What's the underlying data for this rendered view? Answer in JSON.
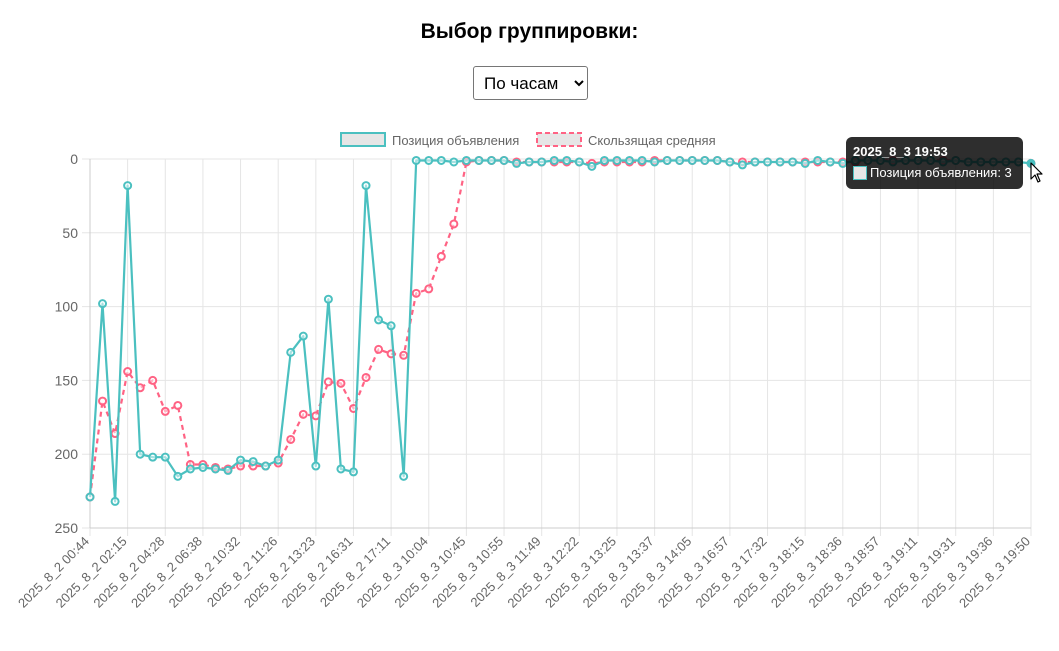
{
  "page": {
    "title": "Выбор группировки:",
    "grouping_select": {
      "selected": "По часам",
      "options": [
        "По часам"
      ]
    }
  },
  "colors": {
    "position_line": "#4bc0c0",
    "moving_avg_line": "#ff6384",
    "grid": "#e5e5e5",
    "legend_fill": "#e6e6e6"
  },
  "tooltip": {
    "title": "2025_8_3 19:53",
    "label": "Позиция объявления: 3"
  },
  "chart_data": {
    "type": "line",
    "title": "",
    "xlabel": "",
    "ylabel": "",
    "y_reversed": true,
    "ylim": [
      0,
      250
    ],
    "yticks": [
      0,
      50,
      100,
      150,
      200,
      250
    ],
    "legend_position": "top-center",
    "grid": true,
    "x_tick_labels": [
      "2025_8_2 00:44",
      "2025_8_2 02:15",
      "2025_8_2 04:28",
      "2025_8_2 06:38",
      "2025_8_2 10:32",
      "2025_8_2 11:26",
      "2025_8_2 13:23",
      "2025_8_2 16:31",
      "2025_8_2 17:11",
      "2025_8_3 10:04",
      "2025_8_3 10:45",
      "2025_8_3 10:55",
      "2025_8_3 11:49",
      "2025_8_3 12:22",
      "2025_8_3 13:25",
      "2025_8_3 13:37",
      "2025_8_3 14:05",
      "2025_8_3 16:57",
      "2025_8_3 17:32",
      "2025_8_3 18:15",
      "2025_8_3 18:36",
      "2025_8_3 18:57",
      "2025_8_3 19:11",
      "2025_8_3 19:31",
      "2025_8_3 19:36",
      "2025_8_3 19:50"
    ],
    "series": [
      {
        "name": "Позиция объявления",
        "style": "solid",
        "values": [
          229,
          98,
          232,
          18,
          200,
          202,
          202,
          215,
          210,
          209,
          210,
          211,
          204,
          205,
          208,
          204,
          131,
          120,
          208,
          95,
          210,
          212,
          18,
          109,
          113,
          215,
          1,
          1,
          1,
          2,
          1,
          1,
          1,
          1,
          3,
          2,
          2,
          1,
          1,
          2,
          5,
          1,
          1,
          1,
          1,
          2,
          1,
          1,
          1,
          1,
          1,
          2,
          4,
          2,
          2,
          2,
          2,
          3,
          1,
          2,
          3,
          1,
          1,
          1,
          2,
          1,
          1,
          1,
          2,
          1,
          2,
          2,
          2,
          2,
          2,
          3
        ]
      },
      {
        "name": "Скользящая средняя",
        "style": "dashed",
        "values": [
          229,
          164,
          186,
          144,
          155,
          150,
          171,
          167,
          207,
          207,
          209,
          210,
          208,
          208,
          208,
          206,
          190,
          173,
          174,
          151,
          152,
          169,
          148,
          129,
          132,
          133,
          91,
          88,
          66,
          44,
          2,
          1,
          1,
          1,
          2,
          2,
          2,
          2,
          2,
          2,
          3,
          2,
          2,
          2,
          2,
          1,
          1,
          1,
          1,
          1,
          1,
          2,
          2,
          2,
          2,
          2,
          2,
          2,
          2,
          2,
          2,
          2,
          1,
          1,
          1,
          1,
          1,
          1,
          1,
          1,
          2,
          2,
          2,
          2,
          2,
          3
        ]
      }
    ]
  }
}
